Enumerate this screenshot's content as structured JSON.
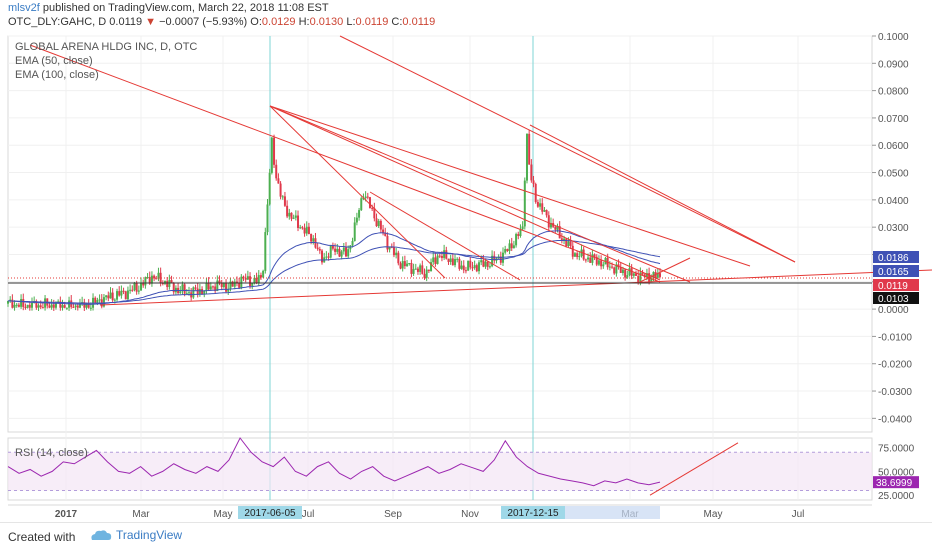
{
  "header": {
    "user": "mlsv2f",
    "published": " published on TradingView.com, March 22, 2018 11:08 EST",
    "symbol": "OTC_DLY:GAHC, D",
    "last": "0.0119",
    "change": "−0.0007 (−5.93%)",
    "o_label": "O:",
    "o": "0.0129",
    "h_label": "H:",
    "h": "0.0130",
    "l_label": "L:",
    "l": "0.0119",
    "c_label": "C:",
    "c": "0.0119"
  },
  "legend": {
    "title": "GLOBAL ARENA HLDG INC, D, OTC",
    "ema50": "EMA (50, close)",
    "ema100": "EMA (100, close)"
  },
  "rsi_legend": "RSI (14, close)",
  "footer": {
    "created": "Created with",
    "brand": "TradingView"
  },
  "colors": {
    "up": "#4caf50",
    "down": "#e0394b",
    "ema": "#3f51b5",
    "trend": "#e53935",
    "rsi": "#9c27b0",
    "vline": "#7fd6d6"
  },
  "chart_data": [
    {
      "type": "candlestick",
      "title": "GLOBAL ARENA HLDG INC, D, OTC",
      "ylim": [
        -0.045,
        0.1
      ],
      "y_ticks": [
        "0.1000",
        "0.0900",
        "0.0800",
        "0.0700",
        "0.0600",
        "0.0500",
        "0.0400",
        "0.0300",
        "0.0200",
        "0.0100",
        "0.0000",
        "-0.0100",
        "-0.0200",
        "-0.0300",
        "-0.0400"
      ],
      "x_ticks": [
        "2017",
        "Mar",
        "May",
        "Jul",
        "Sep",
        "Nov",
        "Mar",
        "May",
        "Jul"
      ],
      "highlighted_dates": [
        "2017-06-05",
        "2017-12-15"
      ],
      "price_labels": [
        {
          "value": "0.0186",
          "color": "#3f51b5"
        },
        {
          "value": "0.0165",
          "color": "#3f51b5"
        },
        {
          "value": "0.0119",
          "color": "#e0394b"
        },
        {
          "value": "0.0103",
          "color": "#111111"
        }
      ],
      "close_points": [
        [
          0,
          0.002
        ],
        [
          0.03,
          0.001
        ],
        [
          0.06,
          0.0015
        ],
        [
          0.09,
          0.0008
        ],
        [
          0.12,
          0.0012
        ],
        [
          0.15,
          0.004
        ],
        [
          0.18,
          0.006
        ],
        [
          0.2,
          0.008
        ],
        [
          0.22,
          0.012
        ],
        [
          0.24,
          0.01
        ],
        [
          0.26,
          0.007
        ],
        [
          0.28,
          0.006
        ],
        [
          0.3,
          0.007
        ],
        [
          0.32,
          0.009
        ],
        [
          0.34,
          0.008
        ],
        [
          0.36,
          0.011
        ],
        [
          0.38,
          0.01
        ],
        [
          0.39,
          0.012
        ],
        [
          0.4,
          0.045
        ],
        [
          0.405,
          0.062
        ],
        [
          0.41,
          0.05
        ],
        [
          0.42,
          0.04
        ],
        [
          0.43,
          0.035
        ],
        [
          0.45,
          0.03
        ],
        [
          0.47,
          0.025
        ],
        [
          0.48,
          0.018
        ],
        [
          0.5,
          0.022
        ],
        [
          0.52,
          0.02
        ],
        [
          0.53,
          0.028
        ],
        [
          0.545,
          0.043
        ],
        [
          0.56,
          0.035
        ],
        [
          0.58,
          0.025
        ],
        [
          0.6,
          0.017
        ],
        [
          0.62,
          0.015
        ],
        [
          0.64,
          0.013
        ],
        [
          0.66,
          0.02
        ],
        [
          0.68,
          0.018
        ],
        [
          0.7,
          0.015
        ],
        [
          0.72,
          0.016
        ],
        [
          0.74,
          0.017
        ],
        [
          0.76,
          0.02
        ],
        [
          0.78,
          0.026
        ],
        [
          0.79,
          0.03
        ],
        [
          0.795,
          0.067
        ],
        [
          0.8,
          0.05
        ],
        [
          0.81,
          0.04
        ],
        [
          0.83,
          0.032
        ],
        [
          0.85,
          0.026
        ],
        [
          0.87,
          0.02
        ],
        [
          0.9,
          0.018
        ],
        [
          0.92,
          0.016
        ],
        [
          0.95,
          0.013
        ],
        [
          0.97,
          0.012
        ],
        [
          1.0,
          0.0119
        ]
      ]
    },
    {
      "type": "line",
      "title": "RSI (14, close)",
      "ylim": [
        20,
        85
      ],
      "y_ticks": [
        "75.0000",
        "50.0000",
        "25.0000"
      ],
      "current": "38.6999",
      "band": [
        30,
        70
      ],
      "values": [
        55,
        48,
        52,
        45,
        50,
        60,
        58,
        65,
        72,
        60,
        50,
        48,
        55,
        45,
        50,
        58,
        52,
        48,
        55,
        50,
        62,
        85,
        70,
        60,
        55,
        65,
        50,
        45,
        55,
        60,
        48,
        42,
        50,
        55,
        45,
        40,
        45,
        50,
        55,
        48,
        52,
        58,
        54,
        50,
        62,
        82,
        65,
        55,
        48,
        45,
        42,
        40,
        38,
        35,
        40,
        38,
        42,
        38,
        36,
        38.7
      ]
    }
  ]
}
